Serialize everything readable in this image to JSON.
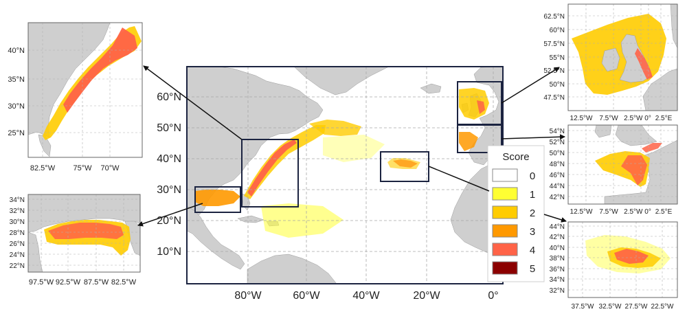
{
  "main_map": {
    "lat_labels": [
      "60°N",
      "50°N",
      "40°N",
      "30°N",
      "20°N",
      "10°N"
    ],
    "lon_labels": [
      "80°W",
      "60°W",
      "40°W",
      "20°W",
      "0°"
    ]
  },
  "legend": {
    "title": "Score",
    "items": [
      {
        "label": "0",
        "color": "#ffffff"
      },
      {
        "label": "1",
        "color": "#ffff33"
      },
      {
        "label": "2",
        "color": "#ffcc00"
      },
      {
        "label": "3",
        "color": "#ff9900"
      },
      {
        "label": "4",
        "color": "#ff6347"
      },
      {
        "label": "5",
        "color": "#8b0000"
      }
    ]
  },
  "insets": {
    "us_east": {
      "lat_labels": [
        "40°N",
        "35°N",
        "30°N",
        "25°N"
      ],
      "lon_labels": [
        "82.5°W",
        "75°W",
        "70°W"
      ]
    },
    "gulf": {
      "lat_labels": [
        "34°N",
        "32°N",
        "30°N",
        "28°N",
        "26°N",
        "24°N",
        "22°N"
      ],
      "lon_labels": [
        "97.5°W",
        "92.5°W",
        "87.5°W",
        "82.5°W"
      ]
    },
    "uk": {
      "lat_labels": [
        "62.5°N",
        "60°N",
        "57.5°N",
        "55°N",
        "52.5°N",
        "50°N",
        "47.5°N"
      ],
      "lon_labels": [
        "12.5°W",
        "7.5°W",
        "2.5°W 0°",
        "2.5°E"
      ]
    },
    "biscay": {
      "lat_labels": [
        "54°N",
        "52°N",
        "50°N",
        "48°N",
        "46°N",
        "44°N",
        "42°N"
      ],
      "lon_labels": [
        "12.5°W",
        "7.5°W",
        "2.5°W 0°",
        "2.5°E"
      ]
    },
    "azores": {
      "lat_labels": [
        "44°N",
        "42°N",
        "40°N",
        "38°N",
        "36°N",
        "34°N",
        "32°N"
      ],
      "lon_labels": [
        "37.5°W",
        "32.5°W",
        "27.5°W",
        "22.5°W"
      ]
    }
  }
}
